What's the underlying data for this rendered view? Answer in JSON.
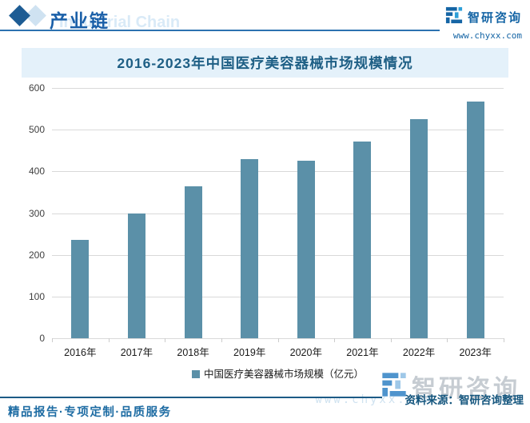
{
  "header": {
    "section_title": "产业链",
    "section_subtitle_en": "Industrial Chain",
    "brand_name": "智研咨询",
    "brand_url": "www.chyxx.com"
  },
  "chart_data": {
    "type": "bar",
    "title": "2016-2023年中国医疗美容器械市场规模情况",
    "categories": [
      "2016年",
      "2017年",
      "2018年",
      "2019年",
      "2020年",
      "2021年",
      "2022年",
      "2023年"
    ],
    "values": [
      235,
      300,
      365,
      430,
      425,
      472,
      525,
      568
    ],
    "legend": "中国医疗美容器械市场规模（亿元）",
    "xlabel": "",
    "ylabel": "",
    "ylim": [
      0,
      600
    ],
    "yticks": [
      0,
      100,
      200,
      300,
      400,
      500,
      600
    ],
    "grid": true,
    "legend_position": "bottom",
    "bar_color": "#5b90a8"
  },
  "watermark": {
    "brand_name": "智研咨询",
    "brand_url": "www.chyxx.com"
  },
  "source_note": "资料来源：智研咨询整理",
  "footer_slogan": "精品报告·专项定制·品质服务",
  "colors": {
    "bar": "#5b90a8",
    "accent_blue": "#1a5fa8",
    "banner_bg": "#e4f1fa",
    "title_text": "#1e5f85",
    "gridline": "#d9d9d9",
    "source_text": "#15567e"
  }
}
